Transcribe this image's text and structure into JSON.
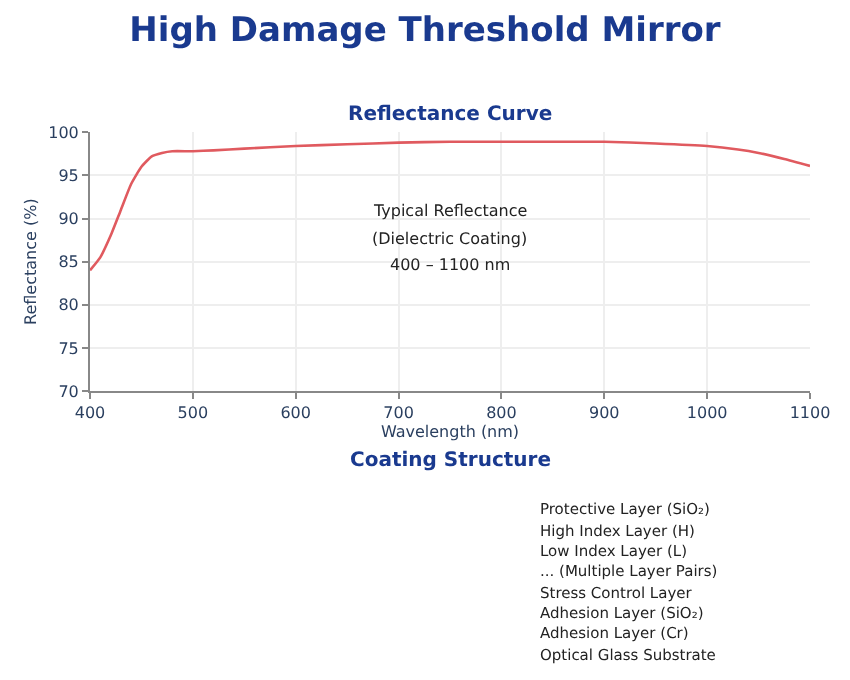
{
  "chart_data": [
    {
      "type": "line",
      "title": "High Damage Threshold Mirror",
      "subtitle": "Reflectance Curve",
      "xlabel": "Wavelength (nm)",
      "ylabel": "Reflectance (%)",
      "x": [
        400,
        410,
        420,
        430,
        440,
        450,
        460,
        470,
        480,
        500,
        520,
        550,
        600,
        650,
        700,
        750,
        800,
        850,
        900,
        950,
        1000,
        1030,
        1050,
        1075,
        1100
      ],
      "series": [
        {
          "color": "#e05a5f",
          "values": [
            84,
            85.5,
            88,
            91,
            94,
            96,
            97.2,
            97.6,
            97.8,
            97.8,
            97.9,
            98.1,
            98.4,
            98.6,
            98.8,
            98.9,
            98.9,
            98.9,
            98.9,
            98.7,
            98.4,
            98.0,
            97.6,
            96.9,
            96.1
          ]
        }
      ],
      "xlim": [
        400,
        1100
      ],
      "xticks": [
        400,
        500,
        600,
        700,
        800,
        900,
        1000,
        1100
      ],
      "ylim": [
        70,
        100
      ],
      "yticks": [
        70,
        75,
        80,
        85,
        90,
        95,
        100
      ],
      "grid": true,
      "legend": false,
      "marker": "none",
      "line_style": "solid",
      "annotations": [
        "Typical Reflectance",
        "(Dielectric Coating)",
        "400 – 1100 nm"
      ]
    },
    {
      "type": "other",
      "title": "Coating Structure",
      "annotations": [
        "Protective Layer (SiO₂)",
        "High Index Layer (H)",
        "Low Index Layer (L)",
        "... (Multiple Layer Pairs)",
        "Stress Control Layer",
        "Adhesion Layer (SiO₂)",
        "Adhesion Layer (Cr)",
        "Optical Glass Substrate"
      ]
    }
  ]
}
